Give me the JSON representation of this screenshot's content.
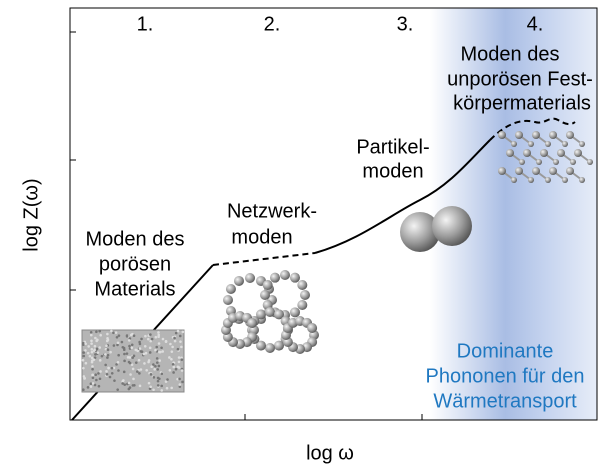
{
  "axes": {
    "y_label": "log Z(ω)",
    "x_label": "log ω"
  },
  "regions": [
    "1.",
    "2.",
    "3.",
    "4."
  ],
  "annotations": {
    "porous": [
      "Moden des",
      "porösen",
      "Materials"
    ],
    "network": [
      "Netzwerk-",
      "moden"
    ],
    "particle": [
      "Partikel-",
      "moden"
    ],
    "solid": [
      "Moden des",
      "unporösen Fest-",
      "körpermaterials"
    ],
    "phonons": [
      "Dominante",
      "Phononen für den",
      "Wärmetransport"
    ]
  }
}
